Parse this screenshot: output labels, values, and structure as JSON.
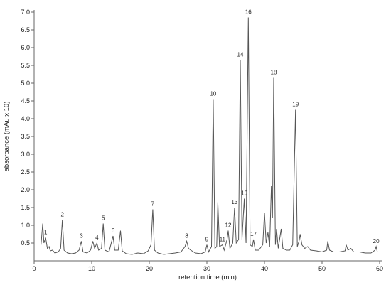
{
  "chart_data": {
    "type": "line",
    "xlabel": "retention time (min)",
    "ylabel": "absorbance (mAu x 10)",
    "xlim": [
      0,
      60
    ],
    "xticks": [
      0,
      10,
      20,
      30,
      40,
      50,
      60
    ],
    "ylim": [
      0,
      7.0
    ],
    "yticks": [
      {
        "value": 0.5,
        "label": "0.5"
      },
      {
        "value": 1,
        "label": "1.0"
      },
      {
        "value": 1.5,
        "label": "1.5"
      },
      {
        "value": 2,
        "label": "2.0"
      },
      {
        "value": 2.5,
        "label": "2.5"
      },
      {
        "value": 3,
        "label": "3.0"
      },
      {
        "value": 3.5,
        "label": "3.5"
      },
      {
        "value": 4,
        "label": "4.0"
      },
      {
        "value": 4.5,
        "label": "4.5"
      },
      {
        "value": 5,
        "label": "5.0"
      },
      {
        "value": 5.5,
        "label": "5.5"
      },
      {
        "value": 6,
        "label": "6.0"
      },
      {
        "value": 6.5,
        "label": "6.5"
      },
      {
        "value": 7,
        "label": "7.0"
      }
    ],
    "color": "#555555",
    "x": [
      1.2,
      1.5,
      1.7,
      2.0,
      2.3,
      2.6,
      2.8,
      3.2,
      3.6,
      4.2,
      4.6,
      4.9,
      5.2,
      5.8,
      6.5,
      7.2,
      7.8,
      8.2,
      8.5,
      9.2,
      9.8,
      10.2,
      10.5,
      10.9,
      11.2,
      11.7,
      12.0,
      12.3,
      13.0,
      13.7,
      14.0,
      14.6,
      15.0,
      15.3,
      16.0,
      17.0,
      18.0,
      19.0,
      19.8,
      20.3,
      20.6,
      20.9,
      21.5,
      22.5,
      23.5,
      24.5,
      25.5,
      26.2,
      26.5,
      26.8,
      27.2,
      28.0,
      29.0,
      29.7,
      30.0,
      30.3,
      30.8,
      31.1,
      31.4,
      31.7,
      31.9,
      32.2,
      32.7,
      33.0,
      33.5,
      33.7,
      34.0,
      34.5,
      34.8,
      35.1,
      35.5,
      35.8,
      36.1,
      36.5,
      36.8,
      37.2,
      37.5,
      37.9,
      38.1,
      38.4,
      39.0,
      39.7,
      40.0,
      40.3,
      40.6,
      40.9,
      41.2,
      41.4,
      41.6,
      41.9,
      42.1,
      42.4,
      42.9,
      43.2,
      43.8,
      44.4,
      44.9,
      45.4,
      45.7,
      46.0,
      46.2,
      46.5,
      47.0,
      47.5,
      48.0,
      49.0,
      50.0,
      50.8,
      51.0,
      51.3,
      52.0,
      53.0,
      54.0,
      54.2,
      54.5,
      55.0,
      55.5,
      56.5,
      57.5,
      58.5,
      59.2,
      59.4,
      59.6
    ],
    "values": [
      0.45,
      1.05,
      0.5,
      0.65,
      0.35,
      0.4,
      0.28,
      0.3,
      0.22,
      0.25,
      0.35,
      1.15,
      0.3,
      0.22,
      0.2,
      0.22,
      0.3,
      0.55,
      0.25,
      0.22,
      0.3,
      0.55,
      0.35,
      0.5,
      0.3,
      0.35,
      1.05,
      0.3,
      0.25,
      0.7,
      0.3,
      0.3,
      0.85,
      0.28,
      0.2,
      0.18,
      0.22,
      0.2,
      0.28,
      0.45,
      1.45,
      0.3,
      0.22,
      0.18,
      0.2,
      0.22,
      0.25,
      0.4,
      0.55,
      0.35,
      0.3,
      0.22,
      0.2,
      0.25,
      0.45,
      0.25,
      0.4,
      4.55,
      0.35,
      0.4,
      1.65,
      0.4,
      0.45,
      0.3,
      0.6,
      0.85,
      0.35,
      0.5,
      1.5,
      0.5,
      0.6,
      5.65,
      0.6,
      1.75,
      0.5,
      6.85,
      0.45,
      0.4,
      0.6,
      0.3,
      0.3,
      0.45,
      1.35,
      0.5,
      0.8,
      0.4,
      2.1,
      1.2,
      5.15,
      0.45,
      0.9,
      0.35,
      0.9,
      0.35,
      0.3,
      0.3,
      0.45,
      4.25,
      0.4,
      0.55,
      0.75,
      0.45,
      0.35,
      0.4,
      0.3,
      0.28,
      0.25,
      0.3,
      0.55,
      0.3,
      0.25,
      0.25,
      0.28,
      0.45,
      0.3,
      0.35,
      0.25,
      0.25,
      0.22,
      0.22,
      0.3,
      0.4,
      0.25
    ],
    "annotations": [
      {
        "text": "1",
        "x": 2.0,
        "y": 0.65
      },
      {
        "text": "2",
        "x": 4.9,
        "y": 1.15
      },
      {
        "text": "3",
        "x": 8.2,
        "y": 0.55
      },
      {
        "text": "4",
        "x": 10.9,
        "y": 0.5
      },
      {
        "text": "5",
        "x": 12.0,
        "y": 1.05
      },
      {
        "text": "6",
        "x": 13.7,
        "y": 0.7
      },
      {
        "text": "7",
        "x": 20.6,
        "y": 1.45
      },
      {
        "text": "8",
        "x": 26.5,
        "y": 0.55
      },
      {
        "text": "9",
        "x": 30.0,
        "y": 0.45
      },
      {
        "text": "10",
        "x": 31.1,
        "y": 4.55
      },
      {
        "text": "11",
        "x": 32.7,
        "y": 0.45
      },
      {
        "text": "12",
        "x": 33.7,
        "y": 0.85
      },
      {
        "text": "13",
        "x": 34.8,
        "y": 1.5
      },
      {
        "text": "14",
        "x": 35.8,
        "y": 5.65
      },
      {
        "text": "15",
        "x": 36.5,
        "y": 1.75
      },
      {
        "text": "16",
        "x": 37.2,
        "y": 6.85
      },
      {
        "text": "17",
        "x": 38.1,
        "y": 0.6
      },
      {
        "text": "18",
        "x": 41.6,
        "y": 5.15
      },
      {
        "text": "19",
        "x": 45.4,
        "y": 4.25
      },
      {
        "text": "20",
        "x": 59.4,
        "y": 0.4
      }
    ]
  }
}
